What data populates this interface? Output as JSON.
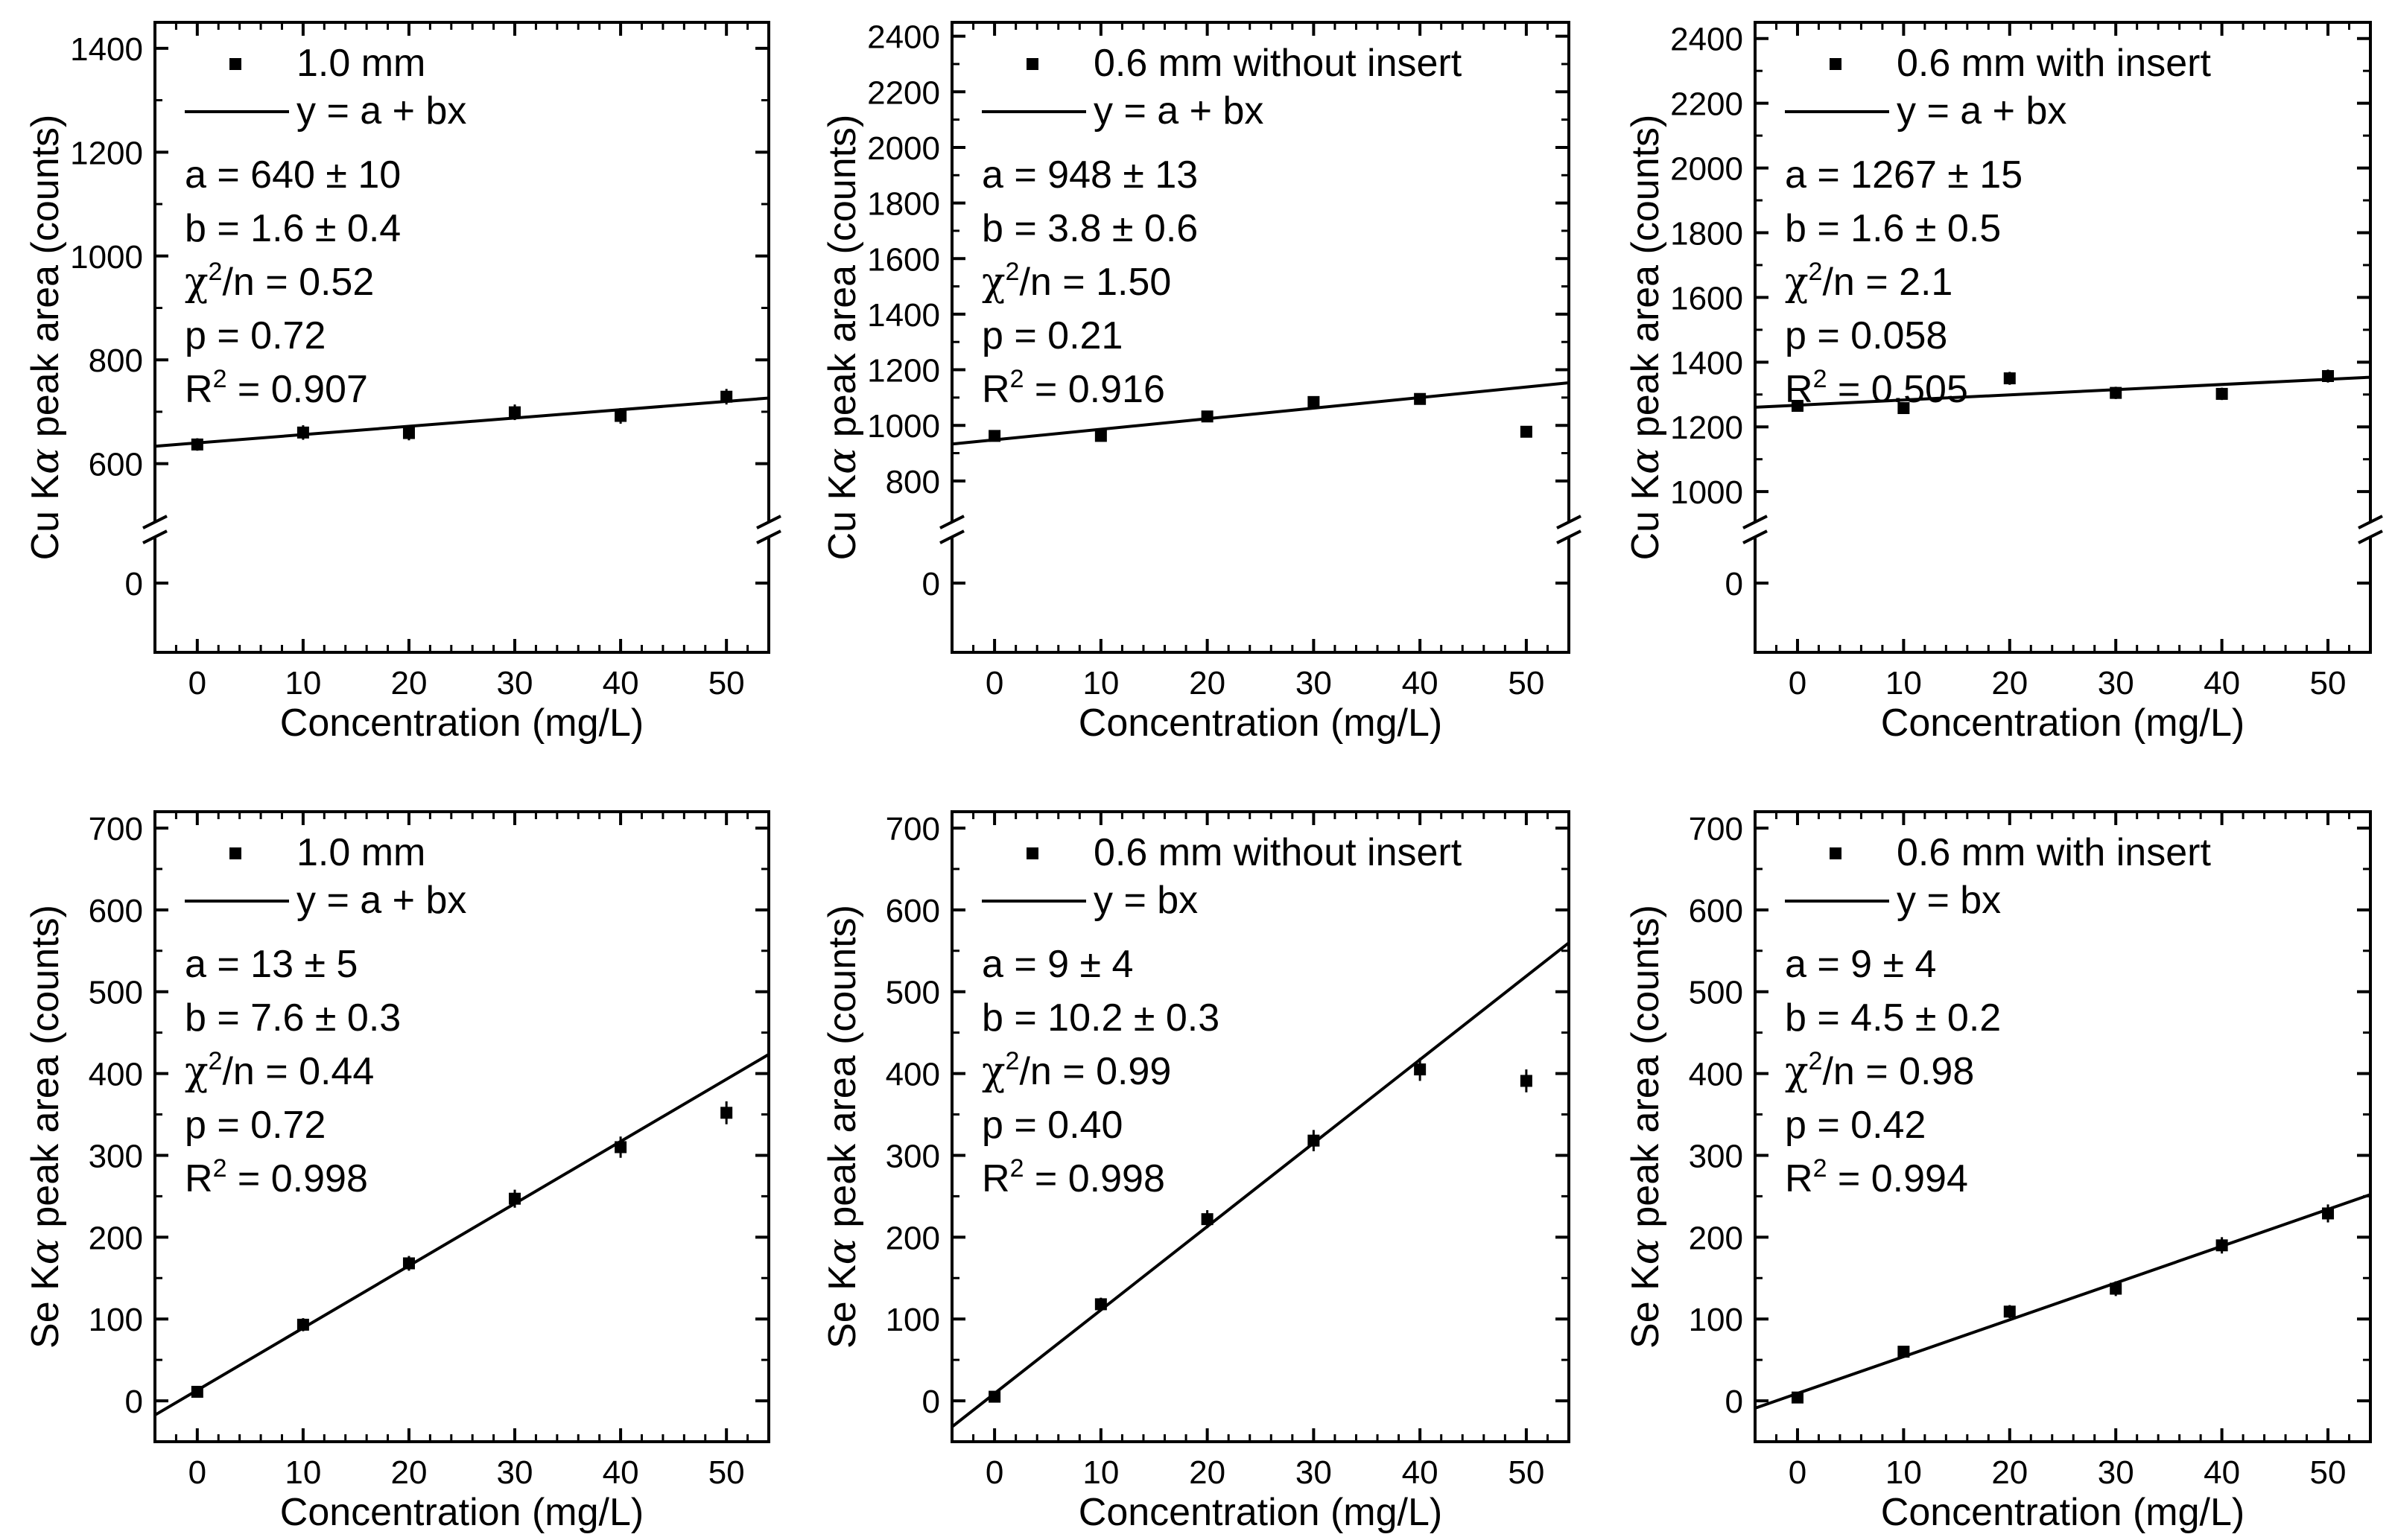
{
  "chart_data": [
    {
      "type": "scatter",
      "xlabel": "Concentration (mg/L)",
      "ylabel_prefix": "Cu K",
      "ylabel_suffix": " peak area (counts)",
      "greek": "α",
      "xlim": [
        -4,
        54
      ],
      "xticks": [
        0,
        10,
        20,
        30,
        40,
        50
      ],
      "axis_break": {
        "low_ticks": [
          0
        ],
        "high_start": 540,
        "high_end": 1450
      },
      "yticks": [
        600,
        800,
        1000,
        1200,
        1400
      ],
      "legend": {
        "marker_label": "1.0 mm",
        "line_label": "y = a + bx"
      },
      "stats": {
        "a": "a = 640 ± 10",
        "b": "b = 1.6 ± 0.4",
        "chi_prefix": "χ",
        "chi_suffix": "/n = 0.52",
        "p": "p = 0.72",
        "r2_prefix": "R",
        "r2_suffix": " = 0.907",
        "sup": "2"
      },
      "points": [
        {
          "x": 0,
          "y": 637,
          "err": 12
        },
        {
          "x": 10,
          "y": 660,
          "err": 14
        },
        {
          "x": 20,
          "y": 659,
          "err": 14
        },
        {
          "x": 30,
          "y": 699,
          "err": 15
        },
        {
          "x": 40,
          "y": 692,
          "err": 15
        },
        {
          "x": 50,
          "y": 729,
          "err": 15
        }
      ],
      "fit": {
        "a": 640,
        "b": 1.6
      }
    },
    {
      "type": "scatter",
      "xlabel": "Concentration (mg/L)",
      "ylabel_prefix": "Cu K",
      "ylabel_suffix": " peak area (counts)",
      "greek": "α",
      "xlim": [
        -4,
        54
      ],
      "xticks": [
        0,
        10,
        20,
        30,
        40,
        50
      ],
      "axis_break": {
        "low_ticks": [
          0
        ],
        "high_start": 750,
        "high_end": 2450
      },
      "yticks": [
        800,
        1000,
        1200,
        1400,
        1600,
        1800,
        2000,
        2200,
        2400
      ],
      "legend": {
        "marker_label": "0.6 mm without insert",
        "line_label": "y = a + bx"
      },
      "stats": {
        "a": "a = 948 ± 13",
        "b": "b = 3.8 ± 0.6",
        "chi_prefix": "χ",
        "chi_suffix": "/n = 1.50",
        "p": "p = 0.21",
        "r2_prefix": "R",
        "r2_suffix": " = 0.916",
        "sup": "2"
      },
      "points": [
        {
          "x": 0,
          "y": 962,
          "err": 12
        },
        {
          "x": 10,
          "y": 962,
          "err": 14
        },
        {
          "x": 20,
          "y": 1032,
          "err": 14
        },
        {
          "x": 30,
          "y": 1084,
          "err": 15
        },
        {
          "x": 40,
          "y": 1095,
          "err": 15
        },
        {
          "x": 50,
          "y": 977,
          "err": 14
        }
      ],
      "fit": {
        "a": 948,
        "b": 3.8
      }
    },
    {
      "type": "scatter",
      "xlabel": "Concentration (mg/L)",
      "ylabel_prefix": "Cu K",
      "ylabel_suffix": " peak area (counts)",
      "greek": "α",
      "xlim": [
        -4,
        54
      ],
      "xticks": [
        0,
        10,
        20,
        30,
        40,
        50
      ],
      "axis_break": {
        "low_ticks": [
          0
        ],
        "high_start": 990,
        "high_end": 2450
      },
      "yticks": [
        1000,
        1200,
        1400,
        1600,
        1800,
        2000,
        2200,
        2400
      ],
      "legend": {
        "marker_label": "0.6 mm with insert",
        "line_label": "y = a + bx"
      },
      "stats": {
        "a": "a = 1267 ± 15",
        "b": "b = 1.6 ± 0.5",
        "chi_prefix": "χ",
        "chi_suffix": "/n = 2.1",
        "p": "p = 0.058",
        "r2_prefix": "R",
        "r2_suffix": " = 0.505",
        "sup": "2"
      },
      "points": [
        {
          "x": 0,
          "y": 1265,
          "err": 17
        },
        {
          "x": 10,
          "y": 1258,
          "err": 18
        },
        {
          "x": 20,
          "y": 1350,
          "err": 20
        },
        {
          "x": 30,
          "y": 1305,
          "err": 19
        },
        {
          "x": 40,
          "y": 1302,
          "err": 19
        },
        {
          "x": 50,
          "y": 1357,
          "err": 20
        }
      ],
      "fit": {
        "a": 1267,
        "b": 1.6
      }
    },
    {
      "type": "scatter",
      "xlabel": "Concentration (mg/L)",
      "ylabel_prefix": "Se K",
      "ylabel_suffix": " peak area (counts)",
      "greek": "α",
      "xlim": [
        -4,
        54
      ],
      "xticks": [
        0,
        10,
        20,
        30,
        40,
        50
      ],
      "ylim": [
        -50,
        720
      ],
      "yticks": [
        0,
        100,
        200,
        300,
        400,
        500,
        600,
        700
      ],
      "legend": {
        "marker_label": "1.0 mm",
        "line_label": "y = a + bx"
      },
      "stats": {
        "a": "a = 13 ± 5",
        "b": "b = 7.6 ± 0.3",
        "chi_prefix": "χ",
        "chi_suffix": "/n = 0.44",
        "p": "p = 0.72",
        "r2_prefix": "R",
        "r2_suffix": " = 0.998",
        "sup": "2"
      },
      "points": [
        {
          "x": 0,
          "y": 11,
          "err": 5
        },
        {
          "x": 10,
          "y": 93,
          "err": 8
        },
        {
          "x": 20,
          "y": 168,
          "err": 9
        },
        {
          "x": 30,
          "y": 247,
          "err": 11
        },
        {
          "x": 40,
          "y": 310,
          "err": 13
        },
        {
          "x": 50,
          "y": 352,
          "err": 14
        }
      ],
      "fit": {
        "a": 13,
        "b": 7.6
      }
    },
    {
      "type": "scatter",
      "xlabel": "Concentration (mg/L)",
      "ylabel_prefix": "Se K",
      "ylabel_suffix": " peak area (counts)",
      "greek": "α",
      "xlim": [
        -4,
        54
      ],
      "xticks": [
        0,
        10,
        20,
        30,
        40,
        50
      ],
      "ylim": [
        -50,
        720
      ],
      "yticks": [
        0,
        100,
        200,
        300,
        400,
        500,
        600,
        700
      ],
      "legend": {
        "marker_label": "0.6 mm without insert",
        "line_label": "y = bx"
      },
      "stats": {
        "a": "a = 9 ± 4",
        "b": "b = 10.2 ± 0.3",
        "chi_prefix": "χ",
        "chi_suffix": "/n = 0.99",
        "p": "p = 0.40",
        "r2_prefix": "R",
        "r2_suffix": " = 0.998",
        "sup": "2"
      },
      "points": [
        {
          "x": 0,
          "y": 5,
          "err": 4
        },
        {
          "x": 10,
          "y": 118,
          "err": 8
        },
        {
          "x": 20,
          "y": 222,
          "err": 11
        },
        {
          "x": 30,
          "y": 318,
          "err": 13
        },
        {
          "x": 40,
          "y": 405,
          "err": 14
        },
        {
          "x": 50,
          "y": 391,
          "err": 14
        }
      ],
      "fit": {
        "a": 9,
        "b": 10.2
      }
    },
    {
      "type": "scatter",
      "xlabel": "Concentration (mg/L)",
      "ylabel_prefix": "Se K",
      "ylabel_suffix": " peak area (counts)",
      "greek": "α",
      "xlim": [
        -4,
        54
      ],
      "xticks": [
        0,
        10,
        20,
        30,
        40,
        50
      ],
      "ylim": [
        -50,
        720
      ],
      "yticks": [
        0,
        100,
        200,
        300,
        400,
        500,
        600,
        700
      ],
      "legend": {
        "marker_label": "0.6 mm with insert",
        "line_label": "y = bx"
      },
      "stats": {
        "a": "a = 9 ± 4",
        "b": "b = 4.5 ± 0.2",
        "chi_prefix": "χ",
        "chi_suffix": "/n = 0.98",
        "p": "p = 0.42",
        "r2_prefix": "R",
        "r2_suffix": " = 0.994",
        "sup": "2"
      },
      "points": [
        {
          "x": 0,
          "y": 4,
          "err": 4
        },
        {
          "x": 10,
          "y": 60,
          "err": 6
        },
        {
          "x": 20,
          "y": 109,
          "err": 8
        },
        {
          "x": 30,
          "y": 137,
          "err": 9
        },
        {
          "x": 40,
          "y": 190,
          "err": 10
        },
        {
          "x": 50,
          "y": 229,
          "err": 11
        }
      ],
      "fit": {
        "a": 9,
        "b": 4.5
      }
    }
  ]
}
